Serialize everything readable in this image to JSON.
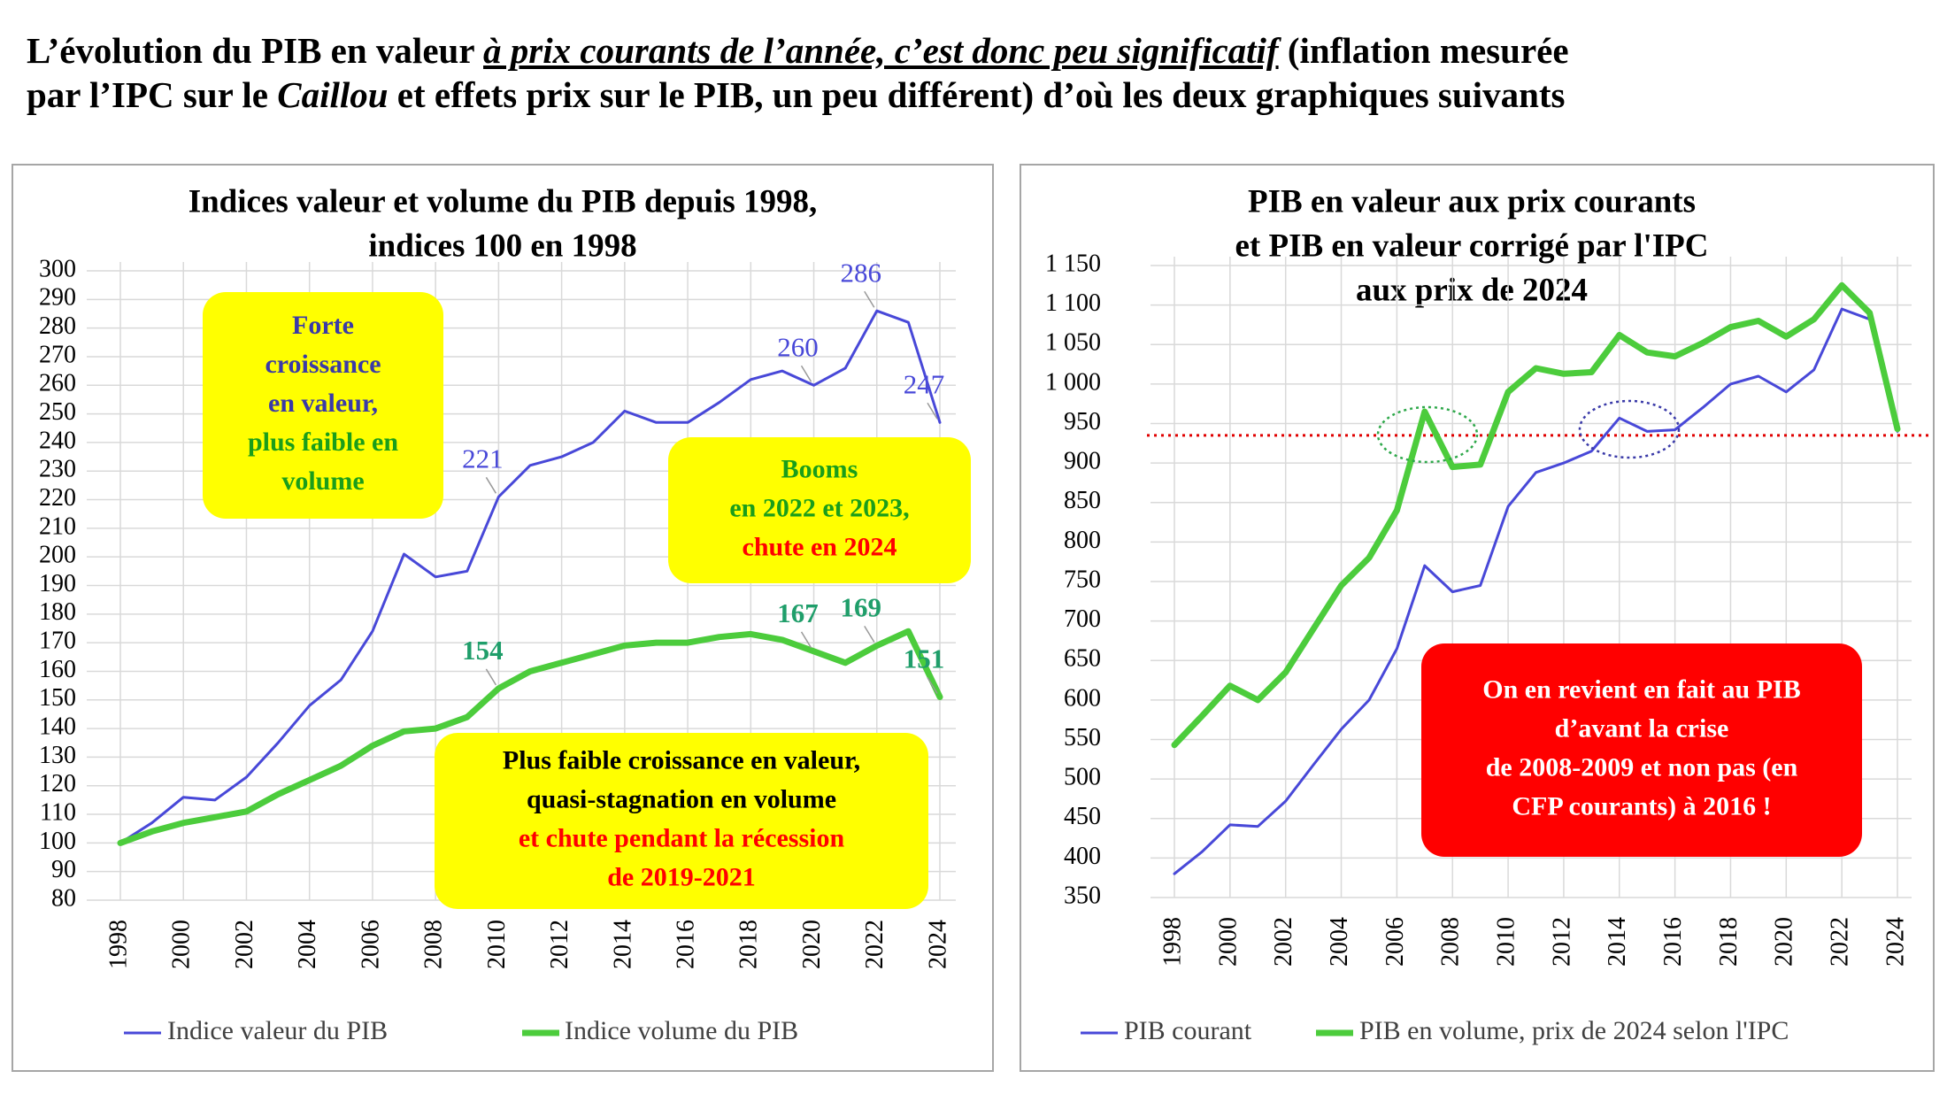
{
  "header": {
    "title": [
      [
        {
          "text": "L’évolution du PIB en valeur ",
          "style": "normal"
        },
        {
          "text": "à prix courants de l’année, c’est donc peu significatif",
          "style": "italic-underline"
        },
        {
          "text": " (inflation mesurée",
          "style": "normal"
        }
      ],
      [
        {
          "text": "par l’IPC sur le ",
          "style": "normal"
        },
        {
          "text": "Caillou",
          "style": "italic"
        },
        {
          "text": " et effets prix sur le PIB, un peu différent) d’où les deux graphiques suivants",
          "style": "normal"
        }
      ]
    ]
  },
  "chart_data": [
    {
      "type": "line",
      "title": [
        "Indices valeur et volume du PIB depuis 1998,",
        "indices 100 en 1998"
      ],
      "x": [
        1998,
        1999,
        2000,
        2001,
        2002,
        2003,
        2004,
        2005,
        2006,
        2007,
        2008,
        2009,
        2010,
        2011,
        2012,
        2013,
        2014,
        2015,
        2016,
        2017,
        2018,
        2019,
        2020,
        2021,
        2022,
        2023,
        2024
      ],
      "series": [
        {
          "name": "Indice valeur du PIB",
          "color": "#4848d8",
          "width": 3,
          "values": [
            100,
            107,
            116,
            115,
            123,
            135,
            148,
            157,
            174,
            201,
            193,
            195,
            221,
            232,
            235,
            240,
            251,
            247,
            247,
            254,
            262,
            265,
            260,
            266,
            286,
            282,
            247
          ],
          "value_labels": [
            null,
            null,
            null,
            null,
            null,
            null,
            null,
            null,
            null,
            null,
            null,
            null,
            "221",
            null,
            null,
            null,
            null,
            null,
            null,
            null,
            null,
            null,
            "260",
            null,
            "286",
            null,
            "247"
          ]
        },
        {
          "name": "Indice volume du PIB",
          "color": "#4ccc3c",
          "width": 7,
          "values": [
            100,
            104,
            107,
            109,
            111,
            117,
            122,
            127,
            134,
            139,
            140,
            144,
            154,
            160,
            163,
            166,
            169,
            170,
            170,
            172,
            173,
            171,
            167,
            163,
            169,
            174,
            151
          ],
          "value_labels": [
            null,
            null,
            null,
            null,
            null,
            null,
            null,
            null,
            null,
            null,
            null,
            null,
            "154",
            null,
            null,
            null,
            null,
            null,
            null,
            null,
            null,
            null,
            "167",
            null,
            "169",
            null,
            "151"
          ]
        }
      ],
      "xlim": [
        1998,
        2024
      ],
      "xticks": [
        1998,
        2000,
        2002,
        2004,
        2006,
        2008,
        2010,
        2012,
        2014,
        2016,
        2018,
        2020,
        2022,
        2024
      ],
      "ylim": [
        80,
        300
      ],
      "yticks": [
        300,
        290,
        280,
        270,
        260,
        250,
        240,
        230,
        220,
        210,
        200,
        190,
        180,
        170,
        160,
        150,
        140,
        130,
        120,
        110,
        100,
        90,
        80
      ],
      "grid": true,
      "legend": "bottom",
      "annotations": [
        {
          "fill": "#ffff00",
          "lines": [
            {
              "text": "Forte",
              "color": "#3a3aa8"
            },
            {
              "text": "croissance",
              "color": "#3a3aa8"
            },
            {
              "text": "en valeur,",
              "color": "#3a3aa8"
            },
            {
              "text": "plus faible en",
              "color": "#1a9e1a"
            },
            {
              "text": "volume",
              "color": "#1a9e1a"
            }
          ]
        },
        {
          "fill": "#ffff00",
          "lines": [
            {
              "text": "Booms",
              "color": "#1a9e1a"
            },
            {
              "text": "en 2022 et 2023,",
              "color": "#1a9e1a"
            },
            {
              "text": "chute en 2024",
              "color": "#ff0000"
            }
          ]
        },
        {
          "fill": "#ffff00",
          "lines": [
            {
              "text": "Plus faible croissance en valeur,",
              "color": "#000000"
            },
            {
              "text": "quasi-stagnation en volume",
              "color": "#000000"
            },
            {
              "text": "et chute pendant la récession",
              "color": "#ff0000"
            },
            {
              "text": "de 2019-2021",
              "color": "#ff0000"
            }
          ]
        }
      ]
    },
    {
      "type": "line",
      "title": [
        "PIB en valeur aux prix courants",
        "et PIB en valeur corrigé par l'IPC",
        "aux prix de 2024"
      ],
      "x": [
        1998,
        1999,
        2000,
        2001,
        2002,
        2003,
        2004,
        2005,
        2006,
        2007,
        2008,
        2009,
        2010,
        2011,
        2012,
        2013,
        2014,
        2015,
        2016,
        2017,
        2018,
        2019,
        2020,
        2021,
        2022,
        2023,
        2024
      ],
      "series": [
        {
          "name": "PIB courant",
          "color": "#4848d8",
          "width": 3,
          "values": [
            380,
            408,
            442,
            440,
            472,
            518,
            563,
            600,
            665,
            770,
            737,
            745,
            845,
            888,
            900,
            915,
            957,
            940,
            942,
            970,
            1000,
            1010,
            990,
            1018,
            1095,
            1082,
            940
          ]
        },
        {
          "name": "PIB en volume, prix de 2024 selon l'IPC",
          "color": "#4ccc3c",
          "width": 7,
          "values": [
            543,
            580,
            618,
            600,
            635,
            690,
            745,
            780,
            840,
            965,
            895,
            898,
            990,
            1020,
            1013,
            1015,
            1062,
            1040,
            1035,
            1052,
            1072,
            1080,
            1060,
            1082,
            1125,
            1090,
            943
          ]
        }
      ],
      "xlim": [
        1998,
        2024
      ],
      "xticks": [
        1998,
        2000,
        2002,
        2004,
        2006,
        2008,
        2010,
        2012,
        2014,
        2016,
        2018,
        2020,
        2022,
        2024
      ],
      "ylim": [
        350,
        1150
      ],
      "yticks": [
        {
          "value": 1150,
          "label": "1 150"
        },
        {
          "value": 1100,
          "label": "1 100"
        },
        {
          "value": 1050,
          "label": "1 050"
        },
        {
          "value": 1000,
          "label": "1 000"
        },
        950,
        900,
        850,
        800,
        750,
        700,
        650,
        600,
        550,
        500,
        450,
        400,
        350
      ],
      "grid": true,
      "legend": "bottom",
      "reference_line": {
        "value": 935,
        "color": "#e00000"
      },
      "annotations": [
        {
          "fill": "#ff0000",
          "lines": [
            {
              "text": "On en revient en fait au PIB",
              "color": "#ffffff"
            },
            {
              "text": "d’avant la crise",
              "color": "#ffffff"
            },
            {
              "text": "de 2008-2009 et non pas (en",
              "color": "#ffffff"
            },
            {
              "text": "CFP courants) à 2016 !",
              "color": "#ffffff"
            }
          ]
        }
      ]
    }
  ]
}
